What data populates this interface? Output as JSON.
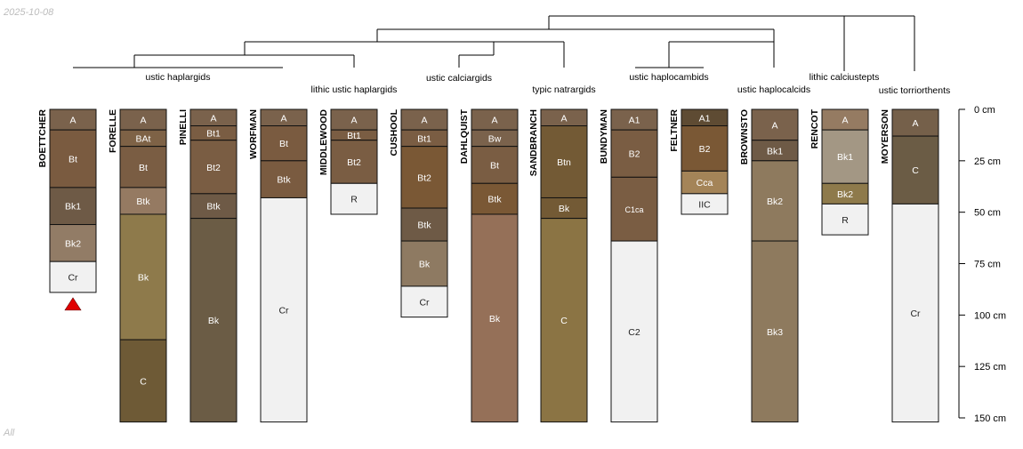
{
  "header": {
    "date": "2025-10-08"
  },
  "footer": {
    "label": "All"
  },
  "depth_axis": {
    "max_cm": 150,
    "ticks": [
      "0 cm",
      "25 cm",
      "50 cm",
      "75 cm",
      "100 cm",
      "125 cm",
      "150 cm"
    ]
  },
  "taxa": [
    "ustic haplargids",
    "lithic ustic haplargids",
    "ustic calciargids",
    "typic natrargids",
    "ustic haplocambids",
    "ustic haplocalcids",
    "lithic calciustepts",
    "ustic torriorthents"
  ],
  "profiles": [
    {
      "name": "BOETTCHER",
      "marker": "red-triangle",
      "horizons": [
        {
          "name": "A",
          "top": 0,
          "bottom": 10,
          "color": "#7A624C",
          "text": "#ffffff"
        },
        {
          "name": "Bt",
          "top": 10,
          "bottom": 38,
          "color": "#7A5B40",
          "text": "#ffffff"
        },
        {
          "name": "Bk1",
          "top": 38,
          "bottom": 56,
          "color": "#6E5A46",
          "text": "#ffffff"
        },
        {
          "name": "Bk2",
          "top": 56,
          "bottom": 74,
          "color": "#927C66",
          "text": "#ffffff"
        },
        {
          "name": "Cr",
          "top": 74,
          "bottom": 89,
          "color": "#F1F1F1",
          "text": "#222222"
        }
      ]
    },
    {
      "name": "FORELLE",
      "horizons": [
        {
          "name": "A",
          "top": 0,
          "bottom": 10,
          "color": "#7A624C",
          "text": "#ffffff"
        },
        {
          "name": "BAt",
          "top": 10,
          "bottom": 18,
          "color": "#7E6246",
          "text": "#ffffff"
        },
        {
          "name": "Bt",
          "top": 18,
          "bottom": 38,
          "color": "#7A5D43",
          "text": "#ffffff"
        },
        {
          "name": "Btk",
          "top": 38,
          "bottom": 51,
          "color": "#957A62",
          "text": "#ffffff"
        },
        {
          "name": "Bk",
          "top": 51,
          "bottom": 112,
          "color": "#8E7A4B",
          "text": "#ffffff"
        },
        {
          "name": "C",
          "top": 112,
          "bottom": 152,
          "color": "#6E5A36",
          "text": "#ffffff"
        }
      ]
    },
    {
      "name": "PINELLI",
      "horizons": [
        {
          "name": "A",
          "top": 0,
          "bottom": 8,
          "color": "#7A624C",
          "text": "#ffffff"
        },
        {
          "name": "Bt1",
          "top": 8,
          "bottom": 15,
          "color": "#7A5D43",
          "text": "#ffffff"
        },
        {
          "name": "Bt2",
          "top": 15,
          "bottom": 41,
          "color": "#7A5D43",
          "text": "#ffffff"
        },
        {
          "name": "Btk",
          "top": 41,
          "bottom": 53,
          "color": "#6E5A46",
          "text": "#ffffff"
        },
        {
          "name": "Bk",
          "top": 53,
          "bottom": 152,
          "color": "#6B5C45",
          "text": "#ffffff"
        }
      ]
    },
    {
      "name": "WORFMAN",
      "horizons": [
        {
          "name": "A",
          "top": 0,
          "bottom": 8,
          "color": "#7A624C",
          "text": "#ffffff"
        },
        {
          "name": "Bt",
          "top": 8,
          "bottom": 25,
          "color": "#7A5B40",
          "text": "#ffffff"
        },
        {
          "name": "Btk",
          "top": 25,
          "bottom": 43,
          "color": "#7A5B40",
          "text": "#ffffff"
        },
        {
          "name": "Cr",
          "top": 43,
          "bottom": 152,
          "color": "#F1F1F1",
          "text": "#222222"
        }
      ]
    },
    {
      "name": "MIDDLEWOOD",
      "horizons": [
        {
          "name": "A",
          "top": 0,
          "bottom": 10,
          "color": "#7A624C",
          "text": "#ffffff"
        },
        {
          "name": "Bt1",
          "top": 10,
          "bottom": 15,
          "color": "#7A5D43",
          "text": "#ffffff"
        },
        {
          "name": "Bt2",
          "top": 15,
          "bottom": 36,
          "color": "#7A5D43",
          "text": "#ffffff"
        },
        {
          "name": "R",
          "top": 36,
          "bottom": 51,
          "color": "#F1F1F1",
          "text": "#222222"
        }
      ]
    },
    {
      "name": "CUSHOOL",
      "horizons": [
        {
          "name": "A",
          "top": 0,
          "bottom": 10,
          "color": "#7A624C",
          "text": "#ffffff"
        },
        {
          "name": "Bt1",
          "top": 10,
          "bottom": 18,
          "color": "#7A5D43",
          "text": "#ffffff"
        },
        {
          "name": "Bt2",
          "top": 18,
          "bottom": 48,
          "color": "#7A5835",
          "text": "#ffffff"
        },
        {
          "name": "Btk",
          "top": 48,
          "bottom": 64,
          "color": "#6E5A46",
          "text": "#ffffff"
        },
        {
          "name": "Bk",
          "top": 64,
          "bottom": 86,
          "color": "#8E7A62",
          "text": "#ffffff"
        },
        {
          "name": "Cr",
          "top": 86,
          "bottom": 101,
          "color": "#F1F1F1",
          "text": "#222222"
        }
      ]
    },
    {
      "name": "DAHLQUIST",
      "horizons": [
        {
          "name": "A",
          "top": 0,
          "bottom": 10,
          "color": "#7A624C",
          "text": "#ffffff"
        },
        {
          "name": "Bw",
          "top": 10,
          "bottom": 18,
          "color": "#7A624C",
          "text": "#ffffff"
        },
        {
          "name": "Bt",
          "top": 18,
          "bottom": 36,
          "color": "#7A5D43",
          "text": "#ffffff"
        },
        {
          "name": "Btk",
          "top": 36,
          "bottom": 51,
          "color": "#7A5835",
          "text": "#ffffff"
        },
        {
          "name": "Bk",
          "top": 51,
          "bottom": 152,
          "color": "#957058",
          "text": "#ffffff"
        }
      ]
    },
    {
      "name": "SANDBRANCH",
      "horizons": [
        {
          "name": "A",
          "top": 0,
          "bottom": 8,
          "color": "#7A624C",
          "text": "#ffffff"
        },
        {
          "name": "Btn",
          "top": 8,
          "bottom": 43,
          "color": "#735A35",
          "text": "#ffffff"
        },
        {
          "name": "Bk",
          "top": 43,
          "bottom": 53,
          "color": "#735A35",
          "text": "#ffffff"
        },
        {
          "name": "C",
          "top": 53,
          "bottom": 152,
          "color": "#8B7444",
          "text": "#ffffff"
        }
      ]
    },
    {
      "name": "BUNDYMAN",
      "horizons": [
        {
          "name": "A1",
          "top": 0,
          "bottom": 10,
          "color": "#7A624C",
          "text": "#ffffff"
        },
        {
          "name": "B2",
          "top": 10,
          "bottom": 33,
          "color": "#7A5D43",
          "text": "#ffffff"
        },
        {
          "name": "C1ca",
          "top": 33,
          "bottom": 64,
          "color": "#7A5D43",
          "text": "#ffffff"
        },
        {
          "name": "C2",
          "top": 64,
          "bottom": 152,
          "color": "#F1F1F1",
          "text": "#222222"
        }
      ]
    },
    {
      "name": "FELTNER",
      "horizons": [
        {
          "name": "A1",
          "top": 0,
          "bottom": 8,
          "color": "#5E4B33",
          "text": "#ffffff"
        },
        {
          "name": "B2",
          "top": 8,
          "bottom": 30,
          "color": "#7A5835",
          "text": "#ffffff"
        },
        {
          "name": "Cca",
          "top": 30,
          "bottom": 41,
          "color": "#A48458",
          "text": "#ffffff"
        },
        {
          "name": "IIC",
          "top": 41,
          "bottom": 51,
          "color": "#F1F1F1",
          "text": "#222222"
        }
      ]
    },
    {
      "name": "BROWNSTO",
      "horizons": [
        {
          "name": "A",
          "top": 0,
          "bottom": 15,
          "color": "#7A624C",
          "text": "#ffffff"
        },
        {
          "name": "Bk1",
          "top": 15,
          "bottom": 25,
          "color": "#6E5A46",
          "text": "#ffffff"
        },
        {
          "name": "Bk2",
          "top": 25,
          "bottom": 64,
          "color": "#8E7A5E",
          "text": "#ffffff"
        },
        {
          "name": "Bk3",
          "top": 64,
          "bottom": 152,
          "color": "#8E7A5E",
          "text": "#ffffff"
        }
      ]
    },
    {
      "name": "RENCOT",
      "horizons": [
        {
          "name": "A",
          "top": 0,
          "bottom": 10,
          "color": "#957B62",
          "text": "#ffffff"
        },
        {
          "name": "Bk1",
          "top": 10,
          "bottom": 36,
          "color": "#A39784",
          "text": "#ffffff"
        },
        {
          "name": "Bk2",
          "top": 36,
          "bottom": 46,
          "color": "#8E7A4B",
          "text": "#ffffff"
        },
        {
          "name": "R",
          "top": 46,
          "bottom": 61,
          "color": "#F1F1F1",
          "text": "#222222"
        }
      ]
    },
    {
      "name": "MOYERSON",
      "horizons": [
        {
          "name": "A",
          "top": 0,
          "bottom": 13,
          "color": "#75604A",
          "text": "#ffffff"
        },
        {
          "name": "C",
          "top": 13,
          "bottom": 46,
          "color": "#6B5C45",
          "text": "#ffffff"
        },
        {
          "name": "Cr",
          "top": 46,
          "bottom": 152,
          "color": "#F1F1F1",
          "text": "#222222"
        }
      ]
    }
  ]
}
